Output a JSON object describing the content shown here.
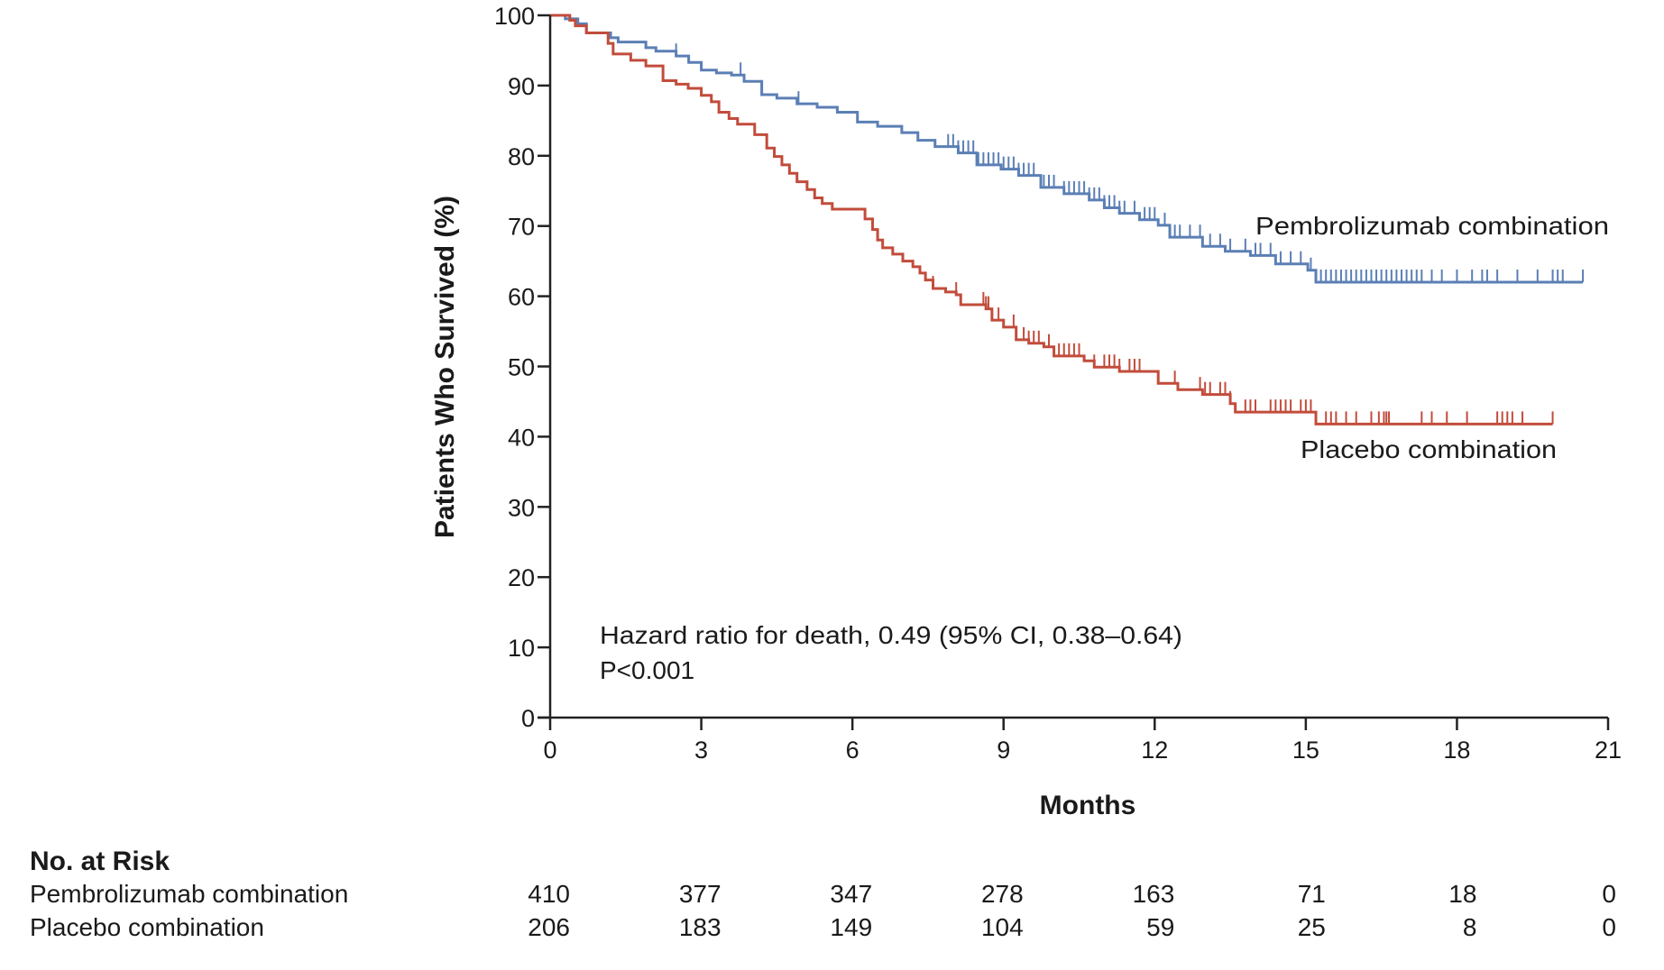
{
  "chart_data": {
    "type": "line",
    "subtype": "kaplan-meier",
    "title": "",
    "xlabel": "Months",
    "ylabel": "Patients Who Survived (%)",
    "xlim": [
      0,
      21
    ],
    "ylim": [
      0,
      100
    ],
    "x_ticks": [
      0,
      3,
      6,
      9,
      12,
      15,
      18,
      21
    ],
    "y_ticks": [
      0,
      10,
      20,
      30,
      40,
      50,
      60,
      70,
      80,
      90,
      100
    ],
    "x_tick_labels": [
      "0",
      "3",
      "6",
      "9",
      "12",
      "15",
      "18",
      "21"
    ],
    "y_tick_labels": [
      "0",
      "10",
      "20",
      "30",
      "40",
      "50",
      "60",
      "70",
      "80",
      "90",
      "100"
    ],
    "grid": false,
    "annotation": {
      "line1": "Hazard ratio for death, 0.49 (95% CI, 0.38–0.64)",
      "line2": "P<0.001"
    },
    "series": [
      {
        "name": "Pembrolizumab combination",
        "color": "#5b7fb5",
        "label_position": "right, above curve",
        "steps": [
          [
            0,
            100
          ],
          [
            0.3,
            99.5
          ],
          [
            0.55,
            98.8
          ],
          [
            0.72,
            97.5
          ],
          [
            1.07,
            97.5
          ],
          [
            1.2,
            96.8
          ],
          [
            1.35,
            96.2
          ],
          [
            1.9,
            95.4
          ],
          [
            2.1,
            94.9
          ],
          [
            2.5,
            94.2
          ],
          [
            2.75,
            93.3
          ],
          [
            3.0,
            92.2
          ],
          [
            3.3,
            91.8
          ],
          [
            3.6,
            91.5
          ],
          [
            3.85,
            90.6
          ],
          [
            4.2,
            88.7
          ],
          [
            4.5,
            88.2
          ],
          [
            4.9,
            87.4
          ],
          [
            5.3,
            86.9
          ],
          [
            5.7,
            86.2
          ],
          [
            6.1,
            84.8
          ],
          [
            6.5,
            84.2
          ],
          [
            6.98,
            83.3
          ],
          [
            7.3,
            82.2
          ],
          [
            7.64,
            81.3
          ],
          [
            8.1,
            80.4
          ],
          [
            8.47,
            78.7
          ],
          [
            8.95,
            78.1
          ],
          [
            9.3,
            77.2
          ],
          [
            9.74,
            75.5
          ],
          [
            10.2,
            74.6
          ],
          [
            10.7,
            73.7
          ],
          [
            11.0,
            72.6
          ],
          [
            11.3,
            71.8
          ],
          [
            11.7,
            70.9
          ],
          [
            12.07,
            70.1
          ],
          [
            12.3,
            68.4
          ],
          [
            12.95,
            67.1
          ],
          [
            13.4,
            66.4
          ],
          [
            13.9,
            65.8
          ],
          [
            14.4,
            64.6
          ],
          [
            15.04,
            63.7
          ],
          [
            15.2,
            62.0
          ],
          [
            20.5,
            62.0
          ]
        ],
        "censor_months": [
          2.5,
          3.78,
          4.93,
          7.9,
          8.0,
          8.1,
          8.2,
          8.3,
          8.4,
          8.5,
          8.6,
          8.7,
          8.8,
          8.9,
          9.0,
          9.1,
          9.2,
          9.3,
          9.4,
          9.5,
          9.6,
          9.8,
          9.9,
          10.0,
          10.2,
          10.3,
          10.4,
          10.5,
          10.6,
          10.7,
          10.8,
          10.9,
          11.0,
          11.1,
          11.2,
          11.3,
          11.4,
          11.6,
          11.8,
          11.9,
          12.0,
          12.2,
          12.4,
          12.5,
          12.7,
          12.9,
          13.1,
          13.3,
          13.5,
          13.8,
          14.0,
          14.1,
          14.3,
          14.5,
          14.7,
          14.9,
          15.1,
          15.3,
          15.4,
          15.5,
          15.6,
          15.7,
          15.8,
          15.9,
          16.0,
          16.1,
          16.2,
          16.3,
          16.4,
          16.5,
          16.6,
          16.7,
          16.8,
          16.9,
          17.0,
          17.1,
          17.2,
          17.3,
          17.5,
          17.7,
          18.0,
          18.3,
          18.5,
          18.6,
          18.8,
          19.2,
          19.6,
          19.9,
          20.0,
          20.1,
          20.5
        ]
      },
      {
        "name": "Placebo combination",
        "color": "#c24c3b",
        "label_position": "right, below curve",
        "steps": [
          [
            0,
            100
          ],
          [
            0.39,
            99.3
          ],
          [
            0.5,
            98.5
          ],
          [
            0.72,
            97.5
          ],
          [
            1.07,
            97.5
          ],
          [
            1.15,
            96.0
          ],
          [
            1.25,
            94.5
          ],
          [
            1.6,
            93.6
          ],
          [
            1.9,
            92.8
          ],
          [
            2.24,
            90.7
          ],
          [
            2.5,
            90.2
          ],
          [
            2.74,
            89.6
          ],
          [
            3.0,
            88.6
          ],
          [
            3.2,
            87.7
          ],
          [
            3.35,
            86.2
          ],
          [
            3.55,
            85.3
          ],
          [
            3.72,
            84.5
          ],
          [
            4.06,
            83.0
          ],
          [
            4.3,
            81.1
          ],
          [
            4.45,
            79.9
          ],
          [
            4.6,
            78.7
          ],
          [
            4.75,
            77.5
          ],
          [
            4.9,
            76.3
          ],
          [
            5.1,
            75.2
          ],
          [
            5.25,
            74.0
          ],
          [
            5.4,
            73.2
          ],
          [
            5.6,
            72.4
          ],
          [
            6.18,
            72.4
          ],
          [
            6.25,
            71.0
          ],
          [
            6.4,
            69.5
          ],
          [
            6.5,
            68.0
          ],
          [
            6.6,
            66.9
          ],
          [
            6.8,
            66.0
          ],
          [
            7.0,
            65.0
          ],
          [
            7.2,
            64.2
          ],
          [
            7.34,
            63.3
          ],
          [
            7.45,
            62.3
          ],
          [
            7.6,
            61.1
          ],
          [
            7.85,
            60.6
          ],
          [
            8.06,
            60.2
          ],
          [
            8.15,
            58.8
          ],
          [
            8.65,
            58.2
          ],
          [
            8.77,
            56.6
          ],
          [
            9.0,
            55.6
          ],
          [
            9.25,
            53.8
          ],
          [
            9.5,
            53.3
          ],
          [
            9.8,
            52.8
          ],
          [
            10.0,
            51.5
          ],
          [
            10.6,
            50.8
          ],
          [
            10.8,
            49.9
          ],
          [
            11.3,
            49.3
          ],
          [
            12.07,
            47.6
          ],
          [
            12.46,
            46.7
          ],
          [
            12.95,
            46.0
          ],
          [
            13.5,
            44.7
          ],
          [
            13.6,
            43.5
          ],
          [
            15.2,
            43.5
          ],
          [
            15.2,
            41.8
          ],
          [
            19.9,
            41.8
          ]
        ],
        "censor_months": [
          7.6,
          8.06,
          8.6,
          8.65,
          8.7,
          8.9,
          9.2,
          9.4,
          9.5,
          9.6,
          9.7,
          9.9,
          10.1,
          10.2,
          10.3,
          10.4,
          10.5,
          10.8,
          11.0,
          11.1,
          11.2,
          11.3,
          11.5,
          11.6,
          11.7,
          12.4,
          12.9,
          13.0,
          13.1,
          13.3,
          13.4,
          13.5,
          13.8,
          13.9,
          14.0,
          14.3,
          14.4,
          14.5,
          14.6,
          14.7,
          14.9,
          15.0,
          15.1,
          15.4,
          15.5,
          15.6,
          15.8,
          16.0,
          16.3,
          16.45,
          16.55,
          16.6,
          16.65,
          17.3,
          17.5,
          17.8,
          18.2,
          18.8,
          18.9,
          19.0,
          19.1,
          19.3,
          19.9
        ]
      }
    ],
    "risk_table": {
      "title": "No. at Risk",
      "months": [
        0,
        3,
        6,
        9,
        12,
        15,
        18,
        21
      ],
      "rows": [
        {
          "label": "Pembrolizumab combination",
          "values": [
            "410",
            "377",
            "347",
            "278",
            "163",
            "71",
            "18",
            "0"
          ]
        },
        {
          "label": "Placebo combination",
          "values": [
            "206",
            "183",
            "149",
            "104",
            "59",
            "25",
            "8",
            "0"
          ]
        }
      ]
    }
  }
}
